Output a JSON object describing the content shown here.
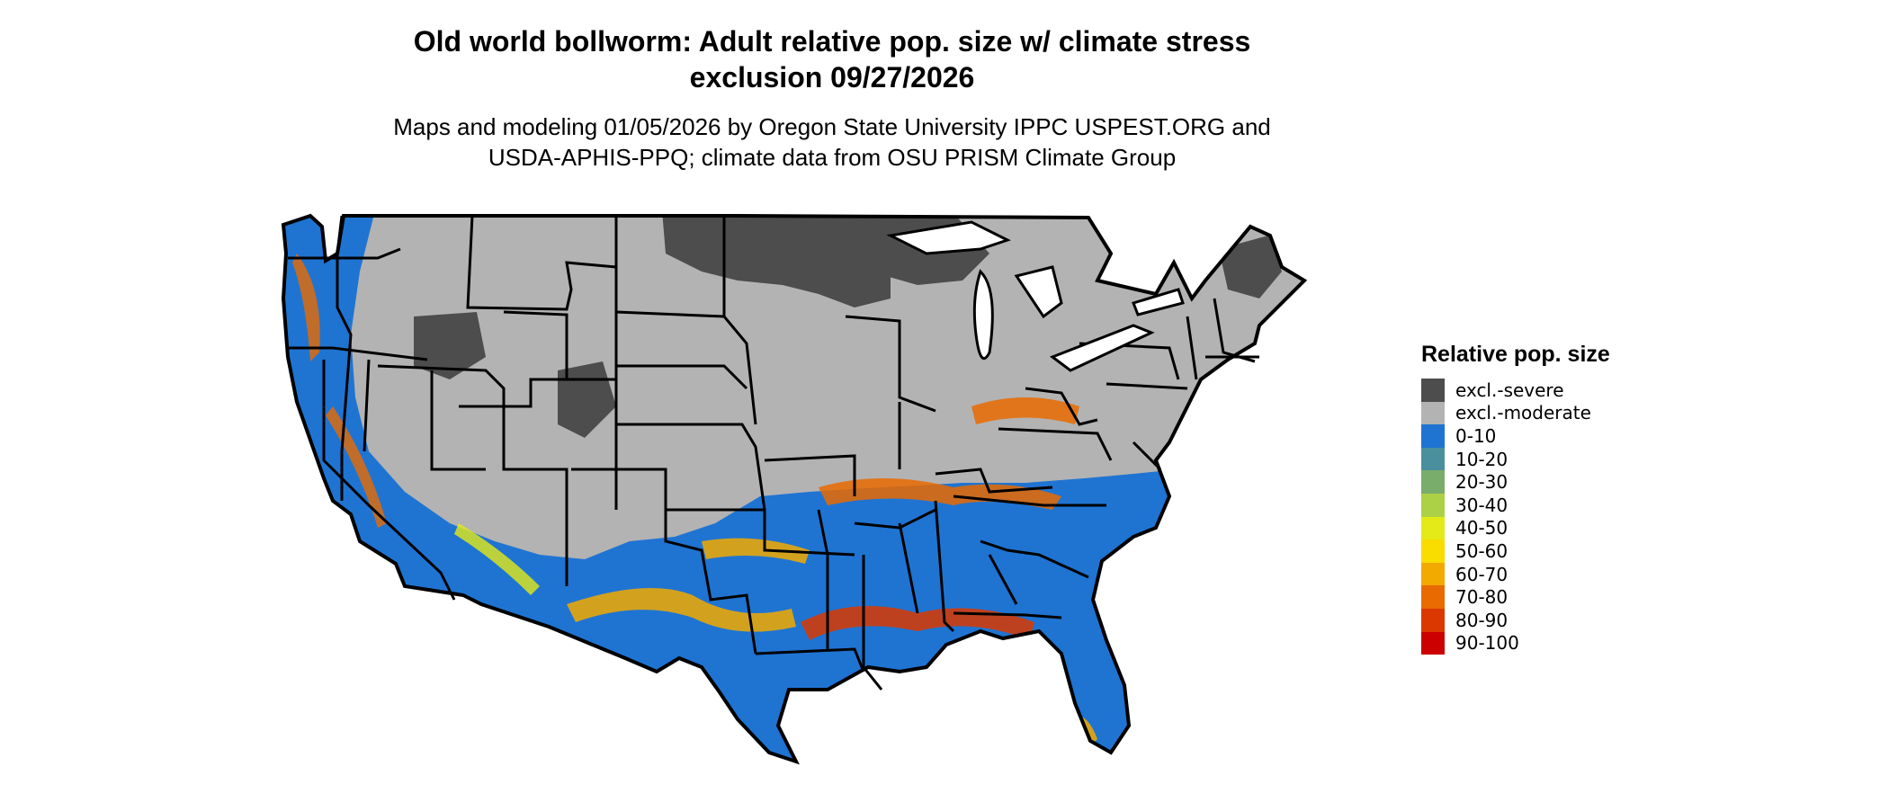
{
  "header": {
    "title_line1": "Old world bollworm: Adult relative pop. size w/ climate stress",
    "title_line2": "exclusion 09/27/2026",
    "subtitle_line1": "Maps and modeling 01/05/2026 by Oregon State University IPPC USPEST.ORG and",
    "subtitle_line2": "USDA-APHIS-PPQ; climate data from OSU PRISM Climate Group"
  },
  "legend": {
    "title": "Relative pop. size",
    "items": [
      {
        "label": "excl.-severe",
        "color": "#4d4d4d"
      },
      {
        "label": "excl.-moderate",
        "color": "#b3b3b3"
      },
      {
        "label": "0-10",
        "color": "#1f74d2"
      },
      {
        "label": "10-20",
        "color": "#4a8f9e"
      },
      {
        "label": "20-30",
        "color": "#79ad6c"
      },
      {
        "label": "30-40",
        "color": "#acd146"
      },
      {
        "label": "40-50",
        "color": "#e3ea17"
      },
      {
        "label": "50-60",
        "color": "#f9dc00"
      },
      {
        "label": "60-70",
        "color": "#f2aa00"
      },
      {
        "label": "70-80",
        "color": "#e96a00"
      },
      {
        "label": "80-90",
        "color": "#da3800"
      },
      {
        "label": "90-100",
        "color": "#cc0000"
      }
    ]
  }
}
